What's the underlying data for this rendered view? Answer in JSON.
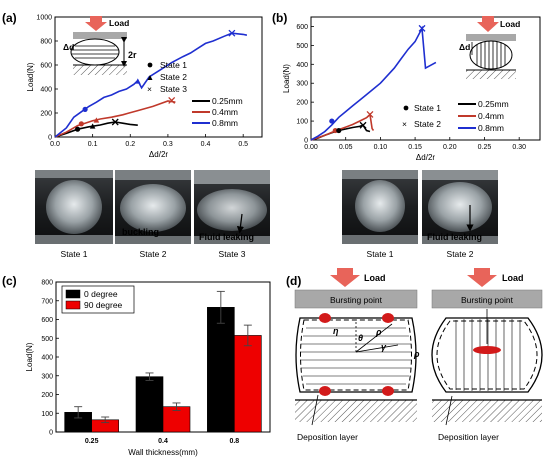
{
  "panels": {
    "a": {
      "label": "(a)",
      "inset_load": "Load",
      "inset_delta": "Δd",
      "inset_2r": "2r",
      "legend_states": [
        "State 1",
        "State 2",
        "State 3"
      ],
      "legend_lines": [
        "0.25mm",
        "0.4mm",
        "0.8mm"
      ],
      "photo_captions": [
        "State 1",
        "State 2",
        "State 3"
      ],
      "photo_annotations": [
        "buckling",
        "Fluid leaking"
      ]
    },
    "b": {
      "label": "(b)",
      "inset_delta": "Δd",
      "inset_load": "Load",
      "legend_states": [
        "State 1",
        "State 2"
      ],
      "legend_lines": [
        "0.25mm",
        "0.4mm",
        "0.8mm"
      ],
      "photo_captions": [
        "State 1",
        "State 2"
      ],
      "photo_annotations": [
        "Fluid leaking"
      ]
    },
    "c": {
      "label": "(c)"
    },
    "d": {
      "label": "(d)",
      "left": {
        "load": "Load",
        "burst": "Bursting point",
        "eta": "η",
        "theta": "θ",
        "rho1": "ρ",
        "gamma": "γ",
        "rho2": "ρ",
        "deposition": "Deposition layer"
      },
      "right": {
        "load": "Load",
        "burst": "Bursting point",
        "deposition": "Deposition layer"
      }
    }
  },
  "colors": {
    "black": "#000000",
    "red": "#c0392b",
    "blue": "#1f2fd0",
    "barred": "#ee0000",
    "arrow": "#e8645a",
    "plate": "#a8a8a8"
  },
  "chart_data": [
    {
      "type": "line",
      "panel": "a",
      "xlabel": "Δd/2r",
      "ylabel": "Load(N)",
      "xlim": [
        0.0,
        0.55
      ],
      "ylim": [
        0,
        1000
      ],
      "xticks": [
        "0.0",
        "0.1",
        "0.2",
        "0.3",
        "0.4",
        "0.5"
      ],
      "yticks": [
        "0",
        "200",
        "400",
        "600",
        "800",
        "1000"
      ],
      "series": [
        {
          "name": "0.25mm",
          "color": "#000000",
          "points": [
            [
              0,
              0
            ],
            [
              0.03,
              30
            ],
            [
              0.06,
              65
            ],
            [
              0.09,
              85
            ],
            [
              0.12,
              100
            ],
            [
              0.14,
              115
            ],
            [
              0.16,
              125
            ],
            [
              0.18,
              115
            ],
            [
              0.2,
              105
            ],
            [
              0.22,
              98
            ]
          ]
        },
        {
          "name": "0.4mm",
          "color": "#c0392b",
          "points": [
            [
              0,
              0
            ],
            [
              0.03,
              40
            ],
            [
              0.06,
              95
            ],
            [
              0.08,
              115
            ],
            [
              0.1,
              135
            ],
            [
              0.12,
              150
            ],
            [
              0.15,
              165
            ],
            [
              0.18,
              185
            ],
            [
              0.22,
              220
            ],
            [
              0.26,
              255
            ],
            [
              0.3,
              300
            ],
            [
              0.32,
              290
            ]
          ]
        },
        {
          "name": "0.8mm",
          "color": "#1f2fd0",
          "points": [
            [
              0,
              0
            ],
            [
              0.03,
              75
            ],
            [
              0.05,
              165
            ],
            [
              0.07,
              210
            ],
            [
              0.09,
              255
            ],
            [
              0.11,
              290
            ],
            [
              0.13,
              330
            ],
            [
              0.15,
              350
            ],
            [
              0.17,
              380
            ],
            [
              0.19,
              400
            ],
            [
              0.21,
              440
            ],
            [
              0.22,
              470
            ],
            [
              0.23,
              410
            ],
            [
              0.25,
              500
            ],
            [
              0.28,
              560
            ],
            [
              0.31,
              620
            ],
            [
              0.34,
              670
            ],
            [
              0.36,
              700
            ],
            [
              0.38,
              740
            ],
            [
              0.4,
              780
            ],
            [
              0.42,
              800
            ],
            [
              0.45,
              840
            ],
            [
              0.47,
              865
            ],
            [
              0.5,
              855
            ],
            [
              0.51,
              848
            ]
          ]
        }
      ],
      "markers": [
        {
          "x": 0.08,
          "y": 230,
          "shape": "circle",
          "color": "#1f2fd0"
        },
        {
          "x": 0.22,
          "y": 465,
          "shape": "triangle",
          "color": "#1f2fd0"
        },
        {
          "x": 0.47,
          "y": 865,
          "shape": "cross",
          "color": "#1f2fd0"
        },
        {
          "x": 0.07,
          "y": 110,
          "shape": "circle",
          "color": "#c0392b"
        },
        {
          "x": 0.11,
          "y": 140,
          "shape": "triangle",
          "color": "#c0392b"
        },
        {
          "x": 0.31,
          "y": 305,
          "shape": "cross",
          "color": "#c0392b"
        },
        {
          "x": 0.06,
          "y": 65,
          "shape": "circle",
          "color": "#000000"
        },
        {
          "x": 0.1,
          "y": 90,
          "shape": "triangle",
          "color": "#000000"
        },
        {
          "x": 0.16,
          "y": 125,
          "shape": "cross",
          "color": "#000000"
        }
      ]
    },
    {
      "type": "line",
      "panel": "b",
      "xlabel": "Δd/2r",
      "ylabel": "Load(N)",
      "xlim": [
        0.0,
        0.33
      ],
      "ylim": [
        0,
        650
      ],
      "xticks": [
        "0.00",
        "0.05",
        "0.10",
        "0.15",
        "0.20",
        "0.25",
        "0.30"
      ],
      "yticks": [
        "0",
        "100",
        "200",
        "300",
        "400",
        "500",
        "600"
      ],
      "series": [
        {
          "name": "0.25mm",
          "color": "#000000",
          "points": [
            [
              0,
              0
            ],
            [
              0.01,
              10
            ],
            [
              0.02,
              25
            ],
            [
              0.03,
              38
            ],
            [
              0.04,
              50
            ],
            [
              0.05,
              58
            ],
            [
              0.06,
              66
            ],
            [
              0.07,
              72
            ],
            [
              0.075,
              78
            ],
            [
              0.08,
              50
            ],
            [
              0.085,
              45
            ]
          ]
        },
        {
          "name": "0.4mm",
          "color": "#c0392b",
          "points": [
            [
              0,
              0
            ],
            [
              0.01,
              12
            ],
            [
              0.02,
              25
            ],
            [
              0.03,
              40
            ],
            [
              0.04,
              55
            ],
            [
              0.05,
              68
            ],
            [
              0.06,
              82
            ],
            [
              0.07,
              100
            ],
            [
              0.08,
              118
            ],
            [
              0.085,
              135
            ],
            [
              0.088,
              60
            ],
            [
              0.09,
              50
            ]
          ]
        },
        {
          "name": "0.8mm",
          "color": "#1f2fd0",
          "points": [
            [
              0,
              0
            ],
            [
              0.01,
              20
            ],
            [
              0.02,
              45
            ],
            [
              0.03,
              80
            ],
            [
              0.04,
              120
            ],
            [
              0.05,
              150
            ],
            [
              0.06,
              180
            ],
            [
              0.07,
              210
            ],
            [
              0.08,
              240
            ],
            [
              0.09,
              270
            ],
            [
              0.1,
              300
            ],
            [
              0.11,
              340
            ],
            [
              0.12,
              380
            ],
            [
              0.13,
              430
            ],
            [
              0.14,
              480
            ],
            [
              0.15,
              520
            ],
            [
              0.16,
              590
            ],
            [
              0.165,
              380
            ],
            [
              0.17,
              390
            ],
            [
              0.18,
              410
            ]
          ]
        }
      ],
      "markers": [
        {
          "x": 0.03,
          "y": 100,
          "shape": "circle",
          "color": "#1f2fd0"
        },
        {
          "x": 0.16,
          "y": 590,
          "shape": "cross",
          "color": "#1f2fd0"
        },
        {
          "x": 0.035,
          "y": 50,
          "shape": "circle",
          "color": "#c0392b"
        },
        {
          "x": 0.085,
          "y": 135,
          "shape": "cross",
          "color": "#c0392b"
        },
        {
          "x": 0.04,
          "y": 50,
          "shape": "circle",
          "color": "#000000"
        },
        {
          "x": 0.075,
          "y": 78,
          "shape": "cross",
          "color": "#000000"
        }
      ]
    },
    {
      "type": "bar",
      "panel": "c",
      "xlabel": "Wall thickness(mm)",
      "ylabel": "Load(N)",
      "ylim": [
        0,
        800
      ],
      "yticks": [
        "0",
        "100",
        "200",
        "300",
        "400",
        "500",
        "600",
        "700",
        "800"
      ],
      "categories": [
        "0.25",
        "0.4",
        "0.8"
      ],
      "series": [
        {
          "name": "0 degree",
          "color": "#000000",
          "values": [
            105,
            295,
            665
          ],
          "errors": [
            30,
            20,
            85
          ]
        },
        {
          "name": "90 degree",
          "color": "#ee0000",
          "values": [
            65,
            135,
            515
          ],
          "errors": [
            15,
            20,
            55
          ]
        }
      ]
    }
  ]
}
